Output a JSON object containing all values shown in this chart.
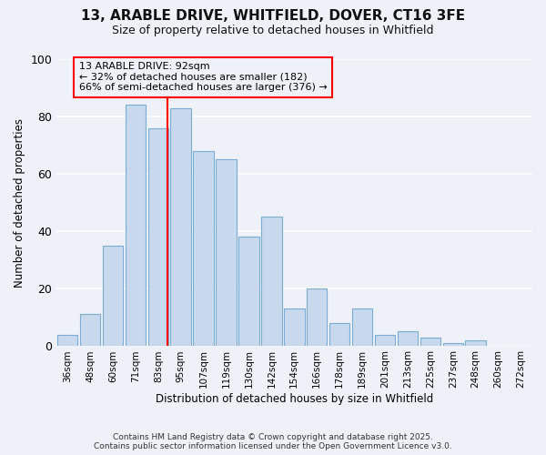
{
  "title_line1": "13, ARABLE DRIVE, WHITFIELD, DOVER, CT16 3FE",
  "title_line2": "Size of property relative to detached houses in Whitfield",
  "xlabel": "Distribution of detached houses by size in Whitfield",
  "ylabel": "Number of detached properties",
  "bar_labels": [
    "36sqm",
    "48sqm",
    "60sqm",
    "71sqm",
    "83sqm",
    "95sqm",
    "107sqm",
    "119sqm",
    "130sqm",
    "142sqm",
    "154sqm",
    "166sqm",
    "178sqm",
    "189sqm",
    "201sqm",
    "213sqm",
    "225sqm",
    "237sqm",
    "248sqm",
    "260sqm",
    "272sqm"
  ],
  "bar_values": [
    4,
    11,
    35,
    84,
    76,
    83,
    68,
    65,
    38,
    45,
    13,
    20,
    8,
    13,
    4,
    5,
    3,
    1,
    2,
    0,
    0
  ],
  "bar_color": "#c8d9ee",
  "bar_edge_color": "#7aadd4",
  "annotation_line1": "13 ARABLE DRIVE: 92sqm",
  "annotation_line2": "← 32% of detached houses are smaller (182)",
  "annotation_line3": "66% of semi-detached houses are larger (376) →",
  "vline_x": 4.42,
  "background_color": "#eef1f8",
  "grid_color": "#ffffff",
  "footnote_line1": "Contains HM Land Registry data © Crown copyright and database right 2025.",
  "footnote_line2": "Contains public sector information licensed under the Open Government Licence v3.0.",
  "ylim": [
    0,
    100
  ],
  "yticks": [
    0,
    20,
    40,
    60,
    80,
    100
  ]
}
